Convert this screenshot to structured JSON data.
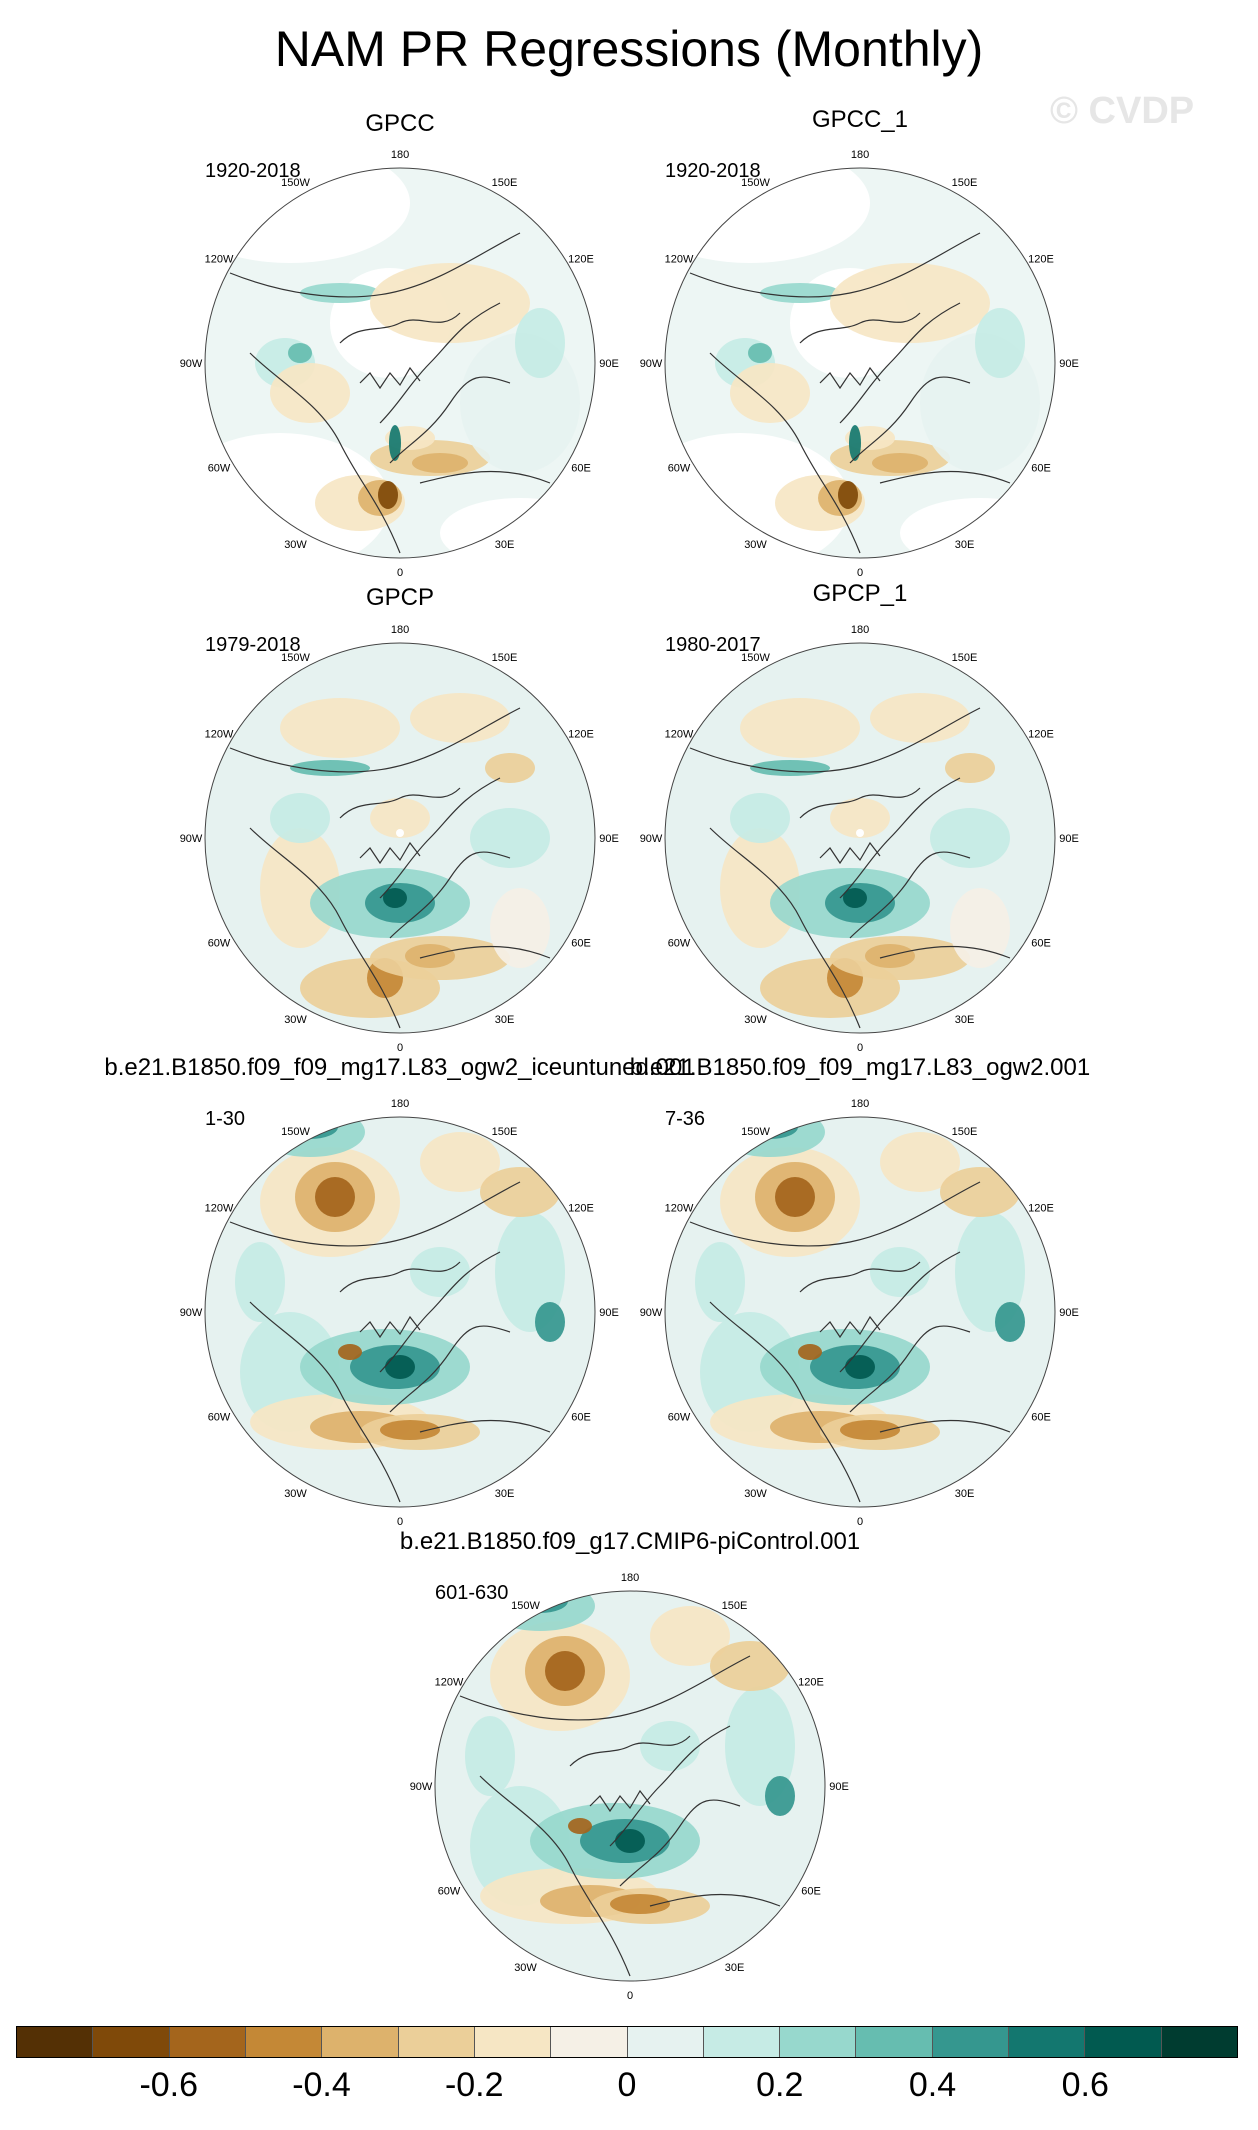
{
  "title": "NAM PR Regressions (Monthly)",
  "watermark": "© CVDP",
  "lon_labels": [
    "180",
    "150E",
    "120E",
    "90E",
    "60E",
    "30E",
    "0",
    "30W",
    "60W",
    "90W",
    "120W",
    "150W"
  ],
  "panels": [
    {
      "name": "GPCC",
      "period": "1920-2018",
      "style": "obs_land"
    },
    {
      "name": "GPCC_1",
      "period": "1920-2018",
      "style": "obs_land"
    },
    {
      "name": "GPCP",
      "period": "1979-2018",
      "style": "obs_full"
    },
    {
      "name": "GPCP_1",
      "period": "1980-2017",
      "style": "obs_full"
    },
    {
      "name": "b.e21.B1850.f09_f09_mg17.L83_ogw2_iceuntuned.001",
      "period": "1-30",
      "style": "model"
    },
    {
      "name": "b.e21.B1850.f09_f09_mg17.L83_ogw2.001",
      "period": "7-36",
      "style": "model"
    },
    {
      "name": "b.e21.B1850.f09_g17.CMIP6-piControl.001",
      "period": "601-630",
      "style": "model"
    }
  ],
  "colorbar": {
    "colors": [
      "#543005",
      "#7f4909",
      "#a4651c",
      "#c48836",
      "#ddb26c",
      "#ebcf99",
      "#f6e6c4",
      "#f5f0e6",
      "#e6f2f0",
      "#c6ebe5",
      "#97d8cd",
      "#66bdb0",
      "#35978f",
      "#13776f",
      "#015a50",
      "#003c30"
    ],
    "labels": [
      "-0.6",
      "-0.4",
      "-0.2",
      "0",
      "0.2",
      "0.4",
      "0.6"
    ],
    "label_values": [
      -0.6,
      -0.4,
      -0.2,
      0,
      0.2,
      0.4,
      0.6
    ],
    "range": [
      -0.8,
      0.8
    ]
  }
}
